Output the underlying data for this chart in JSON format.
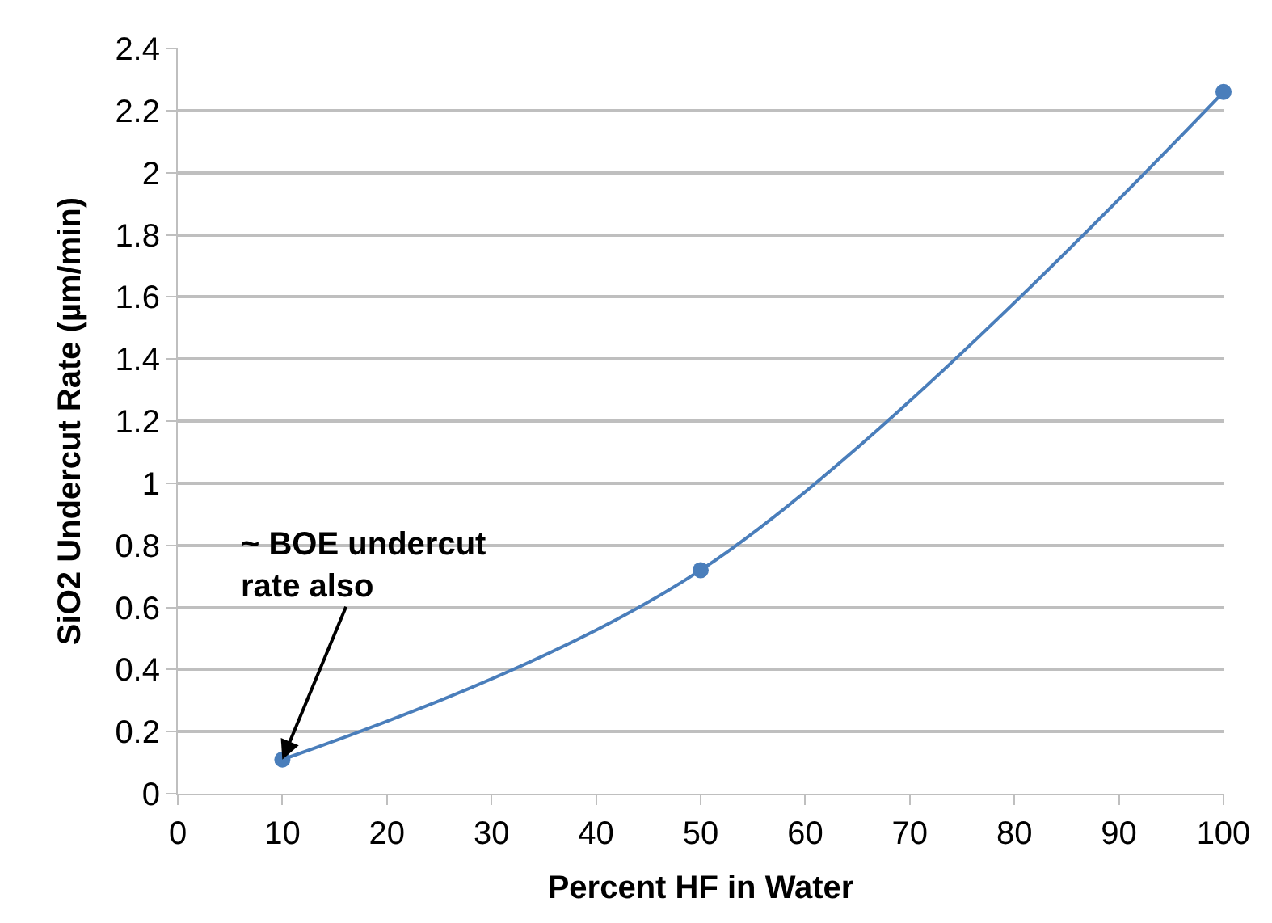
{
  "chart_data": {
    "type": "line",
    "xlabel": "Percent HF in Water",
    "ylabel": "SiO2 Undercut Rate (µm/min)",
    "x": [
      10,
      50,
      100
    ],
    "series": [
      {
        "color": "#4a7ebb",
        "values": [
          0.11,
          0.72,
          2.26
        ]
      }
    ],
    "xlim": [
      0,
      100
    ],
    "xticks": [
      0,
      10,
      20,
      30,
      40,
      50,
      60,
      70,
      80,
      90,
      100
    ],
    "ylim": [
      0,
      2.4
    ],
    "yticks": [
      0,
      0.2,
      0.4,
      0.6,
      0.8,
      1,
      1.2,
      1.4,
      1.6,
      1.8,
      2,
      2.2,
      2.4
    ],
    "grid": "y",
    "marker": "circle",
    "line_style": "solid",
    "annotations": [
      {
        "text": "~ BOE undercut\nrate also",
        "x": 10,
        "y": 0.11
      }
    ]
  }
}
